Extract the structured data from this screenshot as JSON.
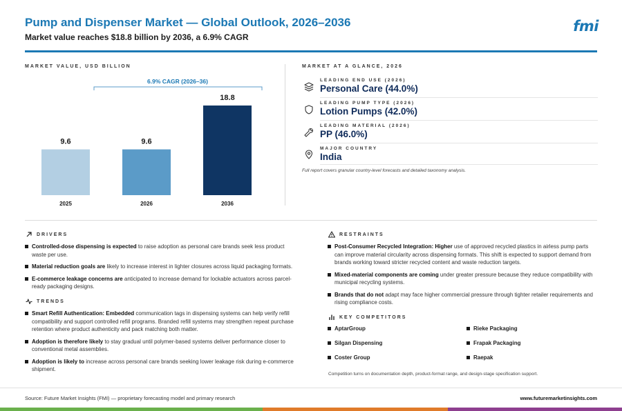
{
  "header": {
    "title": "Pump and Dispenser Market — Global Outlook, 2026–2036",
    "subtitle": "Market value reaches $18.8 billion by 2036, a 6.9% CAGR",
    "logo": "fmi"
  },
  "market_value": {
    "label": "MARKET VALUE, USD BILLION"
  },
  "chart_data": {
    "type": "bar",
    "categories": [
      "2025",
      "2026",
      "2036"
    ],
    "values": [
      9.6,
      9.6,
      18.8
    ],
    "value_labels": [
      "9.6",
      "9.6",
      "18.8"
    ],
    "colors": [
      "#b3cfe3",
      "#5b9bc8",
      "#0f3563"
    ],
    "annotation": "6.9% CAGR (2026–36)",
    "ylim": [
      0,
      18.8
    ]
  },
  "glance": {
    "label": "MARKET AT A GLANCE, 2026",
    "items": [
      {
        "small": "LEADING END USE (2026)",
        "big": "Personal Care (44.0%)",
        "icon": "layers-icon"
      },
      {
        "small": "LEADING PUMP TYPE (2026)",
        "big": "Lotion Pumps (42.0%)",
        "icon": "shield-icon"
      },
      {
        "small": "LEADING MATERIAL (2026)",
        "big": "PP (46.0%)",
        "icon": "wrench-icon"
      },
      {
        "small": "MAJOR COUNTRY",
        "big": "India",
        "icon": "map-pin-icon"
      }
    ],
    "note": "Full report covers granular country-level forecasts and detailed taxonomy analysis."
  },
  "drivers": {
    "label": "DRIVERS",
    "items": [
      {
        "bold": "Controlled-dose dispensing is expected",
        "rest": " to raise adoption as personal care brands seek less product waste per use."
      },
      {
        "bold": "Material reduction goals are",
        "rest": " likely to increase interest in lighter closures across liquid packaging formats."
      },
      {
        "bold": "E-commerce leakage concerns are",
        "rest": " anticipated to increase demand for lockable actuators across parcel-ready packaging designs."
      }
    ]
  },
  "trends": {
    "label": "TRENDS",
    "items": [
      {
        "bold": "Smart Refill Authentication: Embedded",
        "rest": " communication tags in dispensing systems can help verify refill compatibility and support controlled refill programs. Branded refill systems may strengthen repeat purchase retention where product authenticity and pack matching both matter."
      },
      {
        "bold": "Adoption is therefore likely",
        "rest": " to stay gradual until polymer-based systems deliver performance closer to conventional metal assemblies."
      },
      {
        "bold": "Adoption is likely to",
        "rest": " increase across personal care brands seeking lower leakage risk during e-commerce shipment."
      }
    ]
  },
  "restraints": {
    "label": "RESTRAINTS",
    "items": [
      {
        "bold": "Post-Consumer Recycled Integration: Higher",
        "rest": " use of approved recycled plastics in airless pump parts can improve material circularity across dispensing formats. This shift is expected to support demand from brands working toward stricter recycled content and waste reduction targets."
      },
      {
        "bold": "Mixed-material components are coming",
        "rest": " under greater pressure because they reduce compatibility with municipal recycling systems."
      },
      {
        "bold": "Brands that do not",
        "rest": " adapt may face higher commercial pressure through tighter retailer requirements and rising compliance costs."
      }
    ]
  },
  "competitors": {
    "label": "KEY COMPETITORS",
    "items": [
      "AptarGroup",
      "Rieke Packaging",
      "Silgan Dispensing",
      "Frapak Packaging",
      "Coster Group",
      "Raepak"
    ],
    "note": "Competition turns on documentation depth, product-format range, and design-stage specification support."
  },
  "footer": {
    "source": "Source: Future Market Insights (FMI) — proprietary forecasting model and primary research",
    "url": "www.futuremarketinsights.com"
  },
  "colors": {
    "brand": "#1b78b4",
    "navy": "#0f2b5a",
    "strip_green": "#6ab04c",
    "strip_orange": "#e07b2a",
    "strip_purple": "#8e3f8f"
  }
}
